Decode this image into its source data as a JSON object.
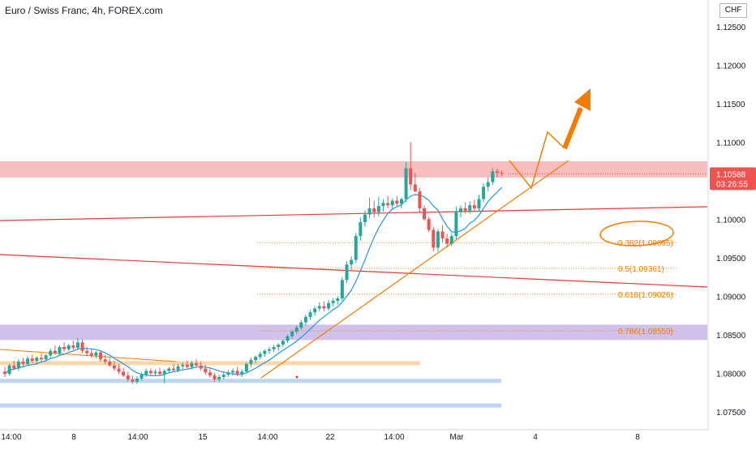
{
  "chart": {
    "title": "Euro / Swiss Franc, 4h, FOREX.com",
    "currency": "CHF",
    "last_price_label": "1.10588",
    "countdown": "03:26:55"
  },
  "colors": {
    "bull_candle": "#26a69a",
    "bear_candle": "#ef5350",
    "resistance_zone": "#f7b2b2",
    "support_zone": "#c7b6e6",
    "fib_color": "#f57c00",
    "trend_line": "#f57c00",
    "channel_line": "#e53935",
    "moving_average": "#2196f3",
    "price_label_bg": "#ef5350"
  },
  "chart_data": {
    "type": "candlestick",
    "symbol": "EURCHF",
    "timeframe": "4h",
    "ylim": [
      1.0745,
      1.1275
    ],
    "y_ticks": [
      "1.07500",
      "1.08000",
      "1.08500",
      "1.09000",
      "1.09500",
      "1.10000",
      "1.10500",
      "1.11000",
      "1.11500",
      "1.12000",
      "1.12500"
    ],
    "x_ticks": [
      "14:00",
      "8",
      "14:00",
      "15",
      "14:00",
      "22",
      "14:00",
      "Mar",
      "4",
      "8"
    ],
    "zones": [
      {
        "name": "resistance",
        "from": 1.1054,
        "to": 1.1075
      },
      {
        "name": "support",
        "from": 1.0843,
        "to": 1.0863
      }
    ],
    "fibonacci": [
      {
        "label": "0.382(1.09695)",
        "value": 1.09695
      },
      {
        "label": "0.5(1.09361)",
        "value": 1.09361
      },
      {
        "label": "0.618(1.09026)",
        "value": 1.09026
      },
      {
        "label": "0.786(1.08550)",
        "value": 1.0855
      }
    ],
    "horizontal_levels": [
      {
        "color": "orange",
        "value": 1.0813
      },
      {
        "color": "blue",
        "value": 1.079
      },
      {
        "color": "blue",
        "value": 1.0758
      }
    ],
    "candles_ohlc": [
      [
        1.0802,
        1.0808,
        1.0795,
        1.0799
      ],
      [
        1.0799,
        1.0812,
        1.0797,
        1.081
      ],
      [
        1.081,
        1.0816,
        1.0804,
        1.0806
      ],
      [
        1.0806,
        1.0818,
        1.0803,
        1.0815
      ],
      [
        1.0815,
        1.082,
        1.0809,
        1.0812
      ],
      [
        1.0812,
        1.0822,
        1.081,
        1.0819
      ],
      [
        1.0819,
        1.0824,
        1.0813,
        1.0816
      ],
      [
        1.0816,
        1.0822,
        1.0811,
        1.082
      ],
      [
        1.082,
        1.0826,
        1.0815,
        1.0818
      ],
      [
        1.0818,
        1.0825,
        1.0816,
        1.0823
      ],
      [
        1.0823,
        1.0832,
        1.082,
        1.0829
      ],
      [
        1.0829,
        1.0836,
        1.0824,
        1.0826
      ],
      [
        1.0826,
        1.0836,
        1.0823,
        1.0834
      ],
      [
        1.0834,
        1.084,
        1.0828,
        1.0831
      ],
      [
        1.0831,
        1.0838,
        1.0829,
        1.0836
      ],
      [
        1.0836,
        1.0842,
        1.083,
        1.0833
      ],
      [
        1.0833,
        1.0846,
        1.083,
        1.084
      ],
      [
        1.084,
        1.0844,
        1.0826,
        1.0829
      ],
      [
        1.0829,
        1.0834,
        1.0822,
        1.0826
      ],
      [
        1.0826,
        1.0831,
        1.082,
        1.0823
      ],
      [
        1.0823,
        1.0829,
        1.0819,
        1.0827
      ],
      [
        1.0827,
        1.083,
        1.0815,
        1.0818
      ],
      [
        1.0818,
        1.0824,
        1.0812,
        1.0815
      ],
      [
        1.0815,
        1.082,
        1.0808,
        1.081
      ],
      [
        1.081,
        1.0816,
        1.0803,
        1.0806
      ],
      [
        1.0806,
        1.0812,
        1.0799,
        1.0802
      ],
      [
        1.0802,
        1.0807,
        1.0795,
        1.0797
      ],
      [
        1.0797,
        1.0802,
        1.0789,
        1.0792
      ],
      [
        1.0792,
        1.0797,
        1.0786,
        1.0789
      ],
      [
        1.0789,
        1.0796,
        1.0786,
        1.0793
      ],
      [
        1.0793,
        1.0801,
        1.079,
        1.0798
      ],
      [
        1.0798,
        1.0806,
        1.0795,
        1.0803
      ],
      [
        1.0803,
        1.0806,
        1.0797,
        1.08
      ],
      [
        1.08,
        1.0805,
        1.0796,
        1.0802
      ],
      [
        1.0802,
        1.0807,
        1.0797,
        1.0799
      ],
      [
        1.0799,
        1.0805,
        1.0787,
        1.0803
      ],
      [
        1.0803,
        1.0808,
        1.08,
        1.0806
      ],
      [
        1.0806,
        1.0812,
        1.0802,
        1.0804
      ],
      [
        1.0804,
        1.0812,
        1.0801,
        1.0809
      ],
      [
        1.0809,
        1.0814,
        1.0805,
        1.0811
      ],
      [
        1.0811,
        1.0816,
        1.0806,
        1.0808
      ],
      [
        1.0808,
        1.0816,
        1.0805,
        1.0813
      ],
      [
        1.0813,
        1.0818,
        1.0808,
        1.081
      ],
      [
        1.081,
        1.0815,
        1.0803,
        1.0806
      ],
      [
        1.0806,
        1.0811,
        1.0798,
        1.0801
      ],
      [
        1.0801,
        1.0806,
        1.0794,
        1.0797
      ],
      [
        1.0797,
        1.08,
        1.0789,
        1.0792
      ],
      [
        1.0792,
        1.0798,
        1.0789,
        1.0795
      ],
      [
        1.0795,
        1.0801,
        1.0792,
        1.0798
      ],
      [
        1.0798,
        1.0804,
        1.0795,
        1.0801
      ],
      [
        1.0801,
        1.0806,
        1.0797,
        1.0803
      ],
      [
        1.0803,
        1.0808,
        1.0796,
        1.0799
      ],
      [
        1.0799,
        1.0805,
        1.0795,
        1.0802
      ],
      [
        1.0802,
        1.0814,
        1.08,
        1.0812
      ],
      [
        1.0812,
        1.082,
        1.0808,
        1.0817
      ],
      [
        1.0817,
        1.0823,
        1.0813,
        1.0821
      ],
      [
        1.0821,
        1.0828,
        1.0818,
        1.0825
      ],
      [
        1.0825,
        1.0831,
        1.0821,
        1.0829
      ],
      [
        1.0829,
        1.0834,
        1.0825,
        1.0831
      ],
      [
        1.0831,
        1.0836,
        1.0827,
        1.0834
      ],
      [
        1.0834,
        1.0839,
        1.0829,
        1.0837
      ],
      [
        1.0837,
        1.0844,
        1.0834,
        1.0842
      ],
      [
        1.0842,
        1.085,
        1.0839,
        1.0848
      ],
      [
        1.0848,
        1.0856,
        1.0845,
        1.0854
      ],
      [
        1.0854,
        1.0862,
        1.0851,
        1.0859
      ],
      [
        1.0859,
        1.0869,
        1.0856,
        1.0866
      ],
      [
        1.0866,
        1.0876,
        1.0862,
        1.0873
      ],
      [
        1.0873,
        1.0882,
        1.0869,
        1.0879
      ],
      [
        1.0879,
        1.0887,
        1.0875,
        1.0884
      ],
      [
        1.0884,
        1.0892,
        1.088,
        1.0887
      ],
      [
        1.0887,
        1.0893,
        1.088,
        1.0884
      ],
      [
        1.0884,
        1.0895,
        1.0881,
        1.0891
      ],
      [
        1.0891,
        1.0897,
        1.0887,
        1.0894
      ],
      [
        1.0894,
        1.09,
        1.0889,
        1.0897
      ],
      [
        1.0897,
        1.0925,
        1.0894,
        1.0921
      ],
      [
        1.0921,
        1.0945,
        1.0917,
        1.0941
      ],
      [
        1.0941,
        1.0952,
        1.0934,
        1.0947
      ],
      [
        1.0947,
        1.0982,
        1.0943,
        1.0978
      ],
      [
        1.0978,
        1.1002,
        1.0972,
        1.0996
      ],
      [
        1.0996,
        1.1011,
        1.099,
        1.1006
      ],
      [
        1.1006,
        1.1028,
        1.1001,
        1.1014
      ],
      [
        1.1014,
        1.1024,
        1.1002,
        1.1009
      ],
      [
        1.1009,
        1.1029,
        1.1004,
        1.1017
      ],
      [
        1.1017,
        1.1026,
        1.101,
        1.1021
      ],
      [
        1.1021,
        1.103,
        1.1014,
        1.1018
      ],
      [
        1.1018,
        1.1027,
        1.1013,
        1.1024
      ],
      [
        1.1024,
        1.103,
        1.1016,
        1.102
      ],
      [
        1.102,
        1.1028,
        1.1014,
        1.1026
      ],
      [
        1.1026,
        1.1074,
        1.1022,
        1.1066
      ],
      [
        1.1066,
        1.11,
        1.1038,
        1.1045
      ],
      [
        1.1045,
        1.106,
        1.1035,
        1.1036
      ],
      [
        1.1036,
        1.104,
        1.1008,
        1.1014
      ],
      [
        1.1014,
        1.1018,
        1.0998,
        1.1
      ],
      [
        1.1,
        1.1003,
        1.0983,
        1.0986
      ],
      [
        1.0986,
        1.099,
        1.0958,
        1.0963
      ],
      [
        1.0963,
        1.0987,
        1.0958,
        1.0984
      ],
      [
        1.0984,
        1.0992,
        1.097,
        1.0975
      ],
      [
        1.0975,
        1.0981,
        1.0963,
        1.0968
      ],
      [
        1.0968,
        1.0982,
        1.0965,
        1.0978
      ],
      [
        1.0978,
        1.1016,
        1.0974,
        1.101
      ],
      [
        1.101,
        1.1018,
        1.1002,
        1.1014
      ],
      [
        1.1014,
        1.1022,
        1.1007,
        1.1011
      ],
      [
        1.1011,
        1.1023,
        1.1007,
        1.1018
      ],
      [
        1.1018,
        1.1025,
        1.101,
        1.1014
      ],
      [
        1.1014,
        1.1032,
        1.101,
        1.1026
      ],
      [
        1.1026,
        1.1046,
        1.1022,
        1.1042
      ],
      [
        1.1042,
        1.1054,
        1.1036,
        1.1048
      ],
      [
        1.1048,
        1.1066,
        1.1044,
        1.1062
      ],
      [
        1.1062,
        1.1066,
        1.1054,
        1.106
      ],
      [
        1.106,
        1.1063,
        1.1056,
        1.1059
      ]
    ]
  }
}
